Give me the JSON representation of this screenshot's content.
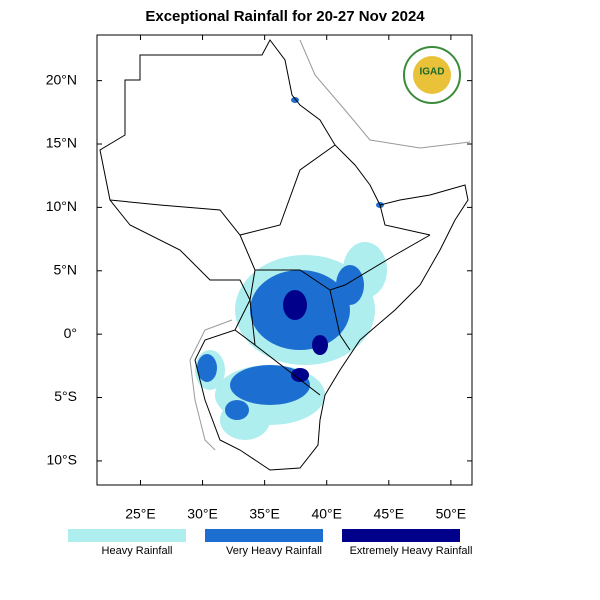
{
  "chart_data": {
    "type": "map",
    "title": "Exceptional Rainfall for 20-27 Nov 2024",
    "logo_text": "IGAD",
    "xlim": [
      21.5,
      51.7
    ],
    "ylim": [
      -11.9,
      23.6
    ],
    "xticks": [
      {
        "value": 25,
        "label": "25°E"
      },
      {
        "value": 30,
        "label": "30°E"
      },
      {
        "value": 35,
        "label": "35°E"
      },
      {
        "value": 40,
        "label": "40°E"
      },
      {
        "value": 45,
        "label": "45°E"
      },
      {
        "value": 50,
        "label": "50°E"
      }
    ],
    "yticks": [
      {
        "value": 20,
        "label": "20°N"
      },
      {
        "value": 15,
        "label": "15°N"
      },
      {
        "value": 10,
        "label": "10°N"
      },
      {
        "value": 5,
        "label": "5°N"
      },
      {
        "value": 0,
        "label": "0°"
      },
      {
        "value": -5,
        "label": "5°S"
      },
      {
        "value": -10,
        "label": "10°S"
      }
    ],
    "legend": [
      {
        "name": "Heavy Rainfall",
        "color": "#aeeeee"
      },
      {
        "name": "Very Heavy Rainfall",
        "color": "#1c6fd1"
      },
      {
        "name": "Extremely Heavy Rainfall",
        "color": "#00008b"
      }
    ]
  }
}
